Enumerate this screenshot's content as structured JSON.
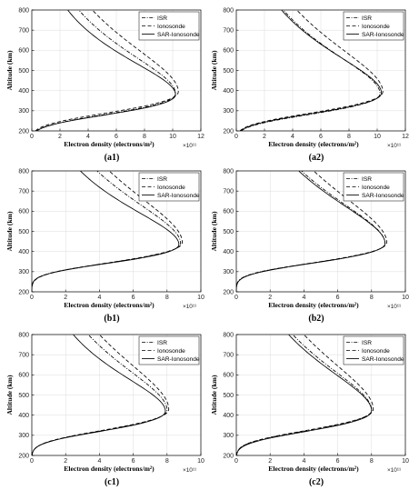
{
  "figure": {
    "panels_order": [
      "a1",
      "a2",
      "b1",
      "b2",
      "c1",
      "c2"
    ]
  },
  "chart_data": [
    {
      "id": "a1",
      "type": "line",
      "label": "(a1)",
      "xlabel": "Electron density (electrons/m²)",
      "x_exponent": "×10¹¹",
      "ylabel": "Altitude (km)",
      "xlim": [
        0,
        12
      ],
      "ylim": [
        200,
        800
      ],
      "xticks": [
        0,
        2,
        4,
        6,
        8,
        10,
        12
      ],
      "yticks": [
        200,
        300,
        400,
        500,
        600,
        700,
        800
      ],
      "grid": true,
      "legend": "top-right",
      "series": [
        {
          "name": "ISR",
          "style": "dashdot",
          "hmax": 385,
          "nmax": 10.2,
          "lower_scale": 80,
          "upper_scale": 130
        },
        {
          "name": "Ionosonde",
          "style": "dashed",
          "hmax": 395,
          "nmax": 10.4,
          "lower_scale": 82,
          "upper_scale": 150
        },
        {
          "name": "SAR-Ionosonde",
          "style": "solid",
          "hmax": 380,
          "nmax": 10.2,
          "lower_scale": 78,
          "upper_scale": 112
        }
      ]
    },
    {
      "id": "a2",
      "type": "line",
      "label": "(a2)",
      "xlabel": "Electron density (electrons/m²)",
      "x_exponent": "×10¹¹",
      "ylabel": "Altitude (km)",
      "xlim": [
        0,
        12
      ],
      "ylim": [
        200,
        800
      ],
      "xticks": [
        0,
        2,
        4,
        6,
        8,
        10,
        12
      ],
      "yticks": [
        200,
        300,
        400,
        500,
        600,
        700,
        800
      ],
      "grid": true,
      "legend": "top-right",
      "series": [
        {
          "name": "ISR",
          "style": "dashdot",
          "hmax": 385,
          "nmax": 10.2,
          "lower_scale": 80,
          "upper_scale": 130
        },
        {
          "name": "Ionosonde",
          "style": "dashed",
          "hmax": 395,
          "nmax": 10.4,
          "lower_scale": 82,
          "upper_scale": 150
        },
        {
          "name": "SAR-Ionosonde",
          "style": "solid",
          "hmax": 388,
          "nmax": 10.3,
          "lower_scale": 80,
          "upper_scale": 125
        }
      ]
    },
    {
      "id": "b1",
      "type": "line",
      "label": "(b1)",
      "xlabel": "Electron density (electrons/m²)",
      "x_exponent": "×10¹¹",
      "ylabel": "Altitude (km)",
      "xlim": [
        0,
        10
      ],
      "ylim": [
        200,
        800
      ],
      "xticks": [
        0,
        2,
        4,
        6,
        8,
        10
      ],
      "yticks": [
        200,
        300,
        400,
        500,
        600,
        700,
        800
      ],
      "grid": true,
      "legend": "top-right",
      "series": [
        {
          "name": "ISR",
          "style": "dashdot",
          "hmax": 440,
          "nmax": 8.8,
          "lower_scale": 75,
          "upper_scale": 140
        },
        {
          "name": "Ionosonde",
          "style": "dashed",
          "hmax": 445,
          "nmax": 8.9,
          "lower_scale": 78,
          "upper_scale": 160
        },
        {
          "name": "SAR-Ionosonde",
          "style": "solid",
          "hmax": 435,
          "nmax": 8.7,
          "lower_scale": 73,
          "upper_scale": 115
        }
      ]
    },
    {
      "id": "b2",
      "type": "line",
      "label": "(b2)",
      "xlabel": "Electron density (electrons/m²)",
      "x_exponent": "×10¹¹",
      "ylabel": "Altitude (km)",
      "xlim": [
        0,
        10
      ],
      "ylim": [
        200,
        800
      ],
      "xticks": [
        0,
        2,
        4,
        6,
        8,
        10
      ],
      "yticks": [
        200,
        300,
        400,
        500,
        600,
        700,
        800
      ],
      "grid": true,
      "legend": "top-right",
      "series": [
        {
          "name": "ISR",
          "style": "dashdot",
          "hmax": 440,
          "nmax": 8.8,
          "lower_scale": 75,
          "upper_scale": 140
        },
        {
          "name": "Ionosonde",
          "style": "dashed",
          "hmax": 445,
          "nmax": 8.9,
          "lower_scale": 78,
          "upper_scale": 160
        },
        {
          "name": "SAR-Ionosonde",
          "style": "solid",
          "hmax": 440,
          "nmax": 8.8,
          "lower_scale": 76,
          "upper_scale": 135
        }
      ]
    },
    {
      "id": "c1",
      "type": "line",
      "label": "(c1)",
      "xlabel": "Electron density (electrons/m²)",
      "x_exponent": "×10¹¹",
      "ylabel": "Altitude (km)",
      "xlim": [
        0,
        10
      ],
      "ylim": [
        200,
        800
      ],
      "xticks": [
        0,
        2,
        4,
        6,
        8,
        10
      ],
      "yticks": [
        200,
        300,
        400,
        500,
        600,
        700,
        800
      ],
      "grid": true,
      "legend": "top-right",
      "series": [
        {
          "name": "ISR",
          "style": "dashdot",
          "hmax": 425,
          "nmax": 8.0,
          "lower_scale": 80,
          "upper_scale": 140
        },
        {
          "name": "Ionosonde",
          "style": "dashed",
          "hmax": 430,
          "nmax": 8.1,
          "lower_scale": 82,
          "upper_scale": 160
        },
        {
          "name": "SAR-Ionosonde",
          "style": "solid",
          "hmax": 420,
          "nmax": 7.9,
          "lower_scale": 78,
          "upper_scale": 115
        }
      ]
    },
    {
      "id": "c2",
      "type": "line",
      "label": "(c2)",
      "xlabel": "Electron density (electrons/m²)",
      "x_exponent": "×10¹¹",
      "ylabel": "Altitude (km)",
      "xlim": [
        0,
        10
      ],
      "ylim": [
        200,
        800
      ],
      "xticks": [
        0,
        2,
        4,
        6,
        8,
        10
      ],
      "yticks": [
        200,
        300,
        400,
        500,
        600,
        700,
        800
      ],
      "grid": true,
      "legend": "top-right",
      "series": [
        {
          "name": "ISR",
          "style": "dashdot",
          "hmax": 425,
          "nmax": 8.0,
          "lower_scale": 80,
          "upper_scale": 140
        },
        {
          "name": "Ionosonde",
          "style": "dashed",
          "hmax": 430,
          "nmax": 8.1,
          "lower_scale": 82,
          "upper_scale": 160
        },
        {
          "name": "SAR-Ionosonde",
          "style": "solid",
          "hmax": 422,
          "nmax": 8.0,
          "lower_scale": 80,
          "upper_scale": 133
        }
      ]
    }
  ]
}
